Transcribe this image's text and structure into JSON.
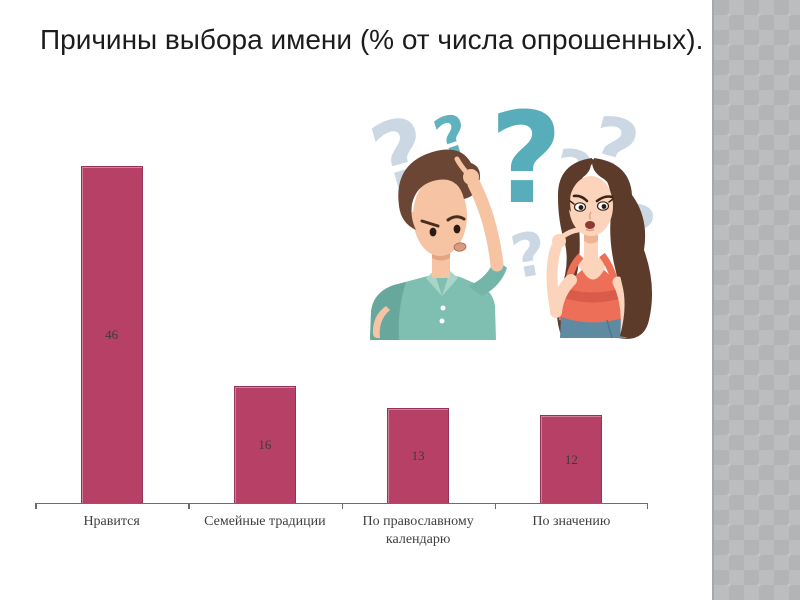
{
  "slide": {
    "title": "Причины выбора имени (% от числа опрошенных)."
  },
  "chart_data": {
    "type": "bar",
    "title": "Причины выбора имени (% от числа опрошенных).",
    "categories": [
      "Нравится",
      "Семейные традиции",
      "По православному календарю",
      "По значению"
    ],
    "values": [
      46,
      16,
      13,
      12
    ],
    "xlabel": "",
    "ylabel": "",
    "ylim": [
      0,
      50
    ],
    "grid": false,
    "legend": false,
    "value_labels_inside_bars": true,
    "bar_color": "#b74067",
    "bar_border_color": "#93335a",
    "axis_color": "#6b6b6b",
    "label_color": "#3f3f3f"
  },
  "illustration": {
    "name": "confused-couple-with-question-marks",
    "colors": {
      "question_mark_teal": "#57aeba",
      "question_mark_light": "#cbd8e4",
      "man_skin": "#f6c3a3",
      "man_hair": "#6b4634",
      "man_shirt": "#7fbfb2",
      "woman_skin": "#fbd4bb",
      "woman_hair": "#5d3b2b",
      "woman_top": "#ed6f58",
      "woman_skirt": "#5e8ba2"
    }
  },
  "sidebar": {
    "pattern": "diamond-checkerboard",
    "base_color": "#b3b4b6",
    "diamond_color": "#bcbdbf"
  }
}
